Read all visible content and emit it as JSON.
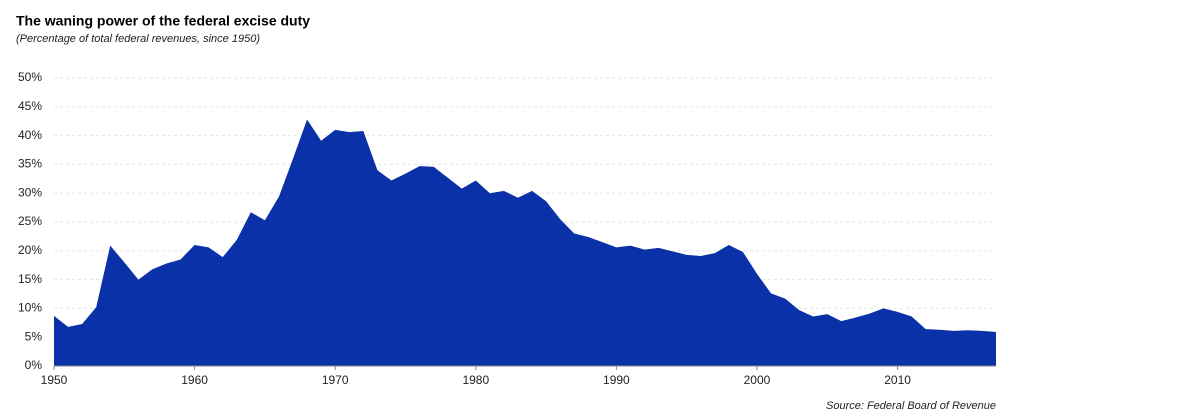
{
  "chart_data": {
    "type": "area",
    "title": "The waning power of the federal excise duty",
    "subtitle": "(Percentage of total federal revenues, since 1950)",
    "source": "Source: Federal Board of Revenue",
    "color": "#0a31a8",
    "x": [
      1950,
      1951,
      1952,
      1953,
      1954,
      1955,
      1956,
      1957,
      1958,
      1959,
      1960,
      1961,
      1962,
      1963,
      1964,
      1965,
      1966,
      1967,
      1968,
      1969,
      1970,
      1971,
      1972,
      1973,
      1974,
      1975,
      1976,
      1977,
      1978,
      1979,
      1980,
      1981,
      1982,
      1983,
      1984,
      1985,
      1986,
      1987,
      1988,
      1989,
      1990,
      1991,
      1992,
      1993,
      1994,
      1995,
      1996,
      1997,
      1998,
      1999,
      2000,
      2001,
      2002,
      2003,
      2004,
      2005,
      2006,
      2007,
      2008,
      2009,
      2010,
      2011,
      2012,
      2013,
      2014,
      2015,
      2016,
      2017
    ],
    "values": [
      8.7,
      6.8,
      7.3,
      10.2,
      20.9,
      18,
      15,
      16.8,
      17.8,
      18.5,
      21,
      20.6,
      18.9,
      21.9,
      26.7,
      25.3,
      29.4,
      36,
      42.8,
      39.1,
      41,
      40.6,
      40.8,
      34,
      32.2,
      33.4,
      34.7,
      34.6,
      32.7,
      30.8,
      32.2,
      30,
      30.4,
      29.2,
      30.4,
      28.6,
      25.5,
      23,
      22.4,
      21.5,
      20.6,
      20.9,
      20.2,
      20.5,
      19.9,
      19.3,
      19.1,
      19.6,
      21,
      19.8,
      16,
      12.6,
      11.7,
      9.7,
      8.6,
      9,
      7.8,
      8.4,
      9.1,
      10,
      9.4,
      8.6,
      6.4,
      6.3,
      6.1,
      6.2,
      6.1,
      5.9
    ],
    "xlim": [
      1950,
      2017
    ],
    "xticks": [
      1950,
      1960,
      1970,
      1980,
      1990,
      2000,
      2010
    ],
    "ylim": [
      0,
      50
    ],
    "yticks": [
      {
        "value": 0,
        "label": "0%"
      },
      {
        "value": 5,
        "label": "5%"
      },
      {
        "value": 10,
        "label": "10%"
      },
      {
        "value": 15,
        "label": "15%"
      },
      {
        "value": 20,
        "label": "20%"
      },
      {
        "value": 25,
        "label": "25%"
      },
      {
        "value": 30,
        "label": "30%"
      },
      {
        "value": 35,
        "label": "35%"
      },
      {
        "value": 40,
        "label": "40%"
      },
      {
        "value": 45,
        "label": "45%"
      },
      {
        "value": 50,
        "label": "50%"
      }
    ],
    "grid": true
  }
}
